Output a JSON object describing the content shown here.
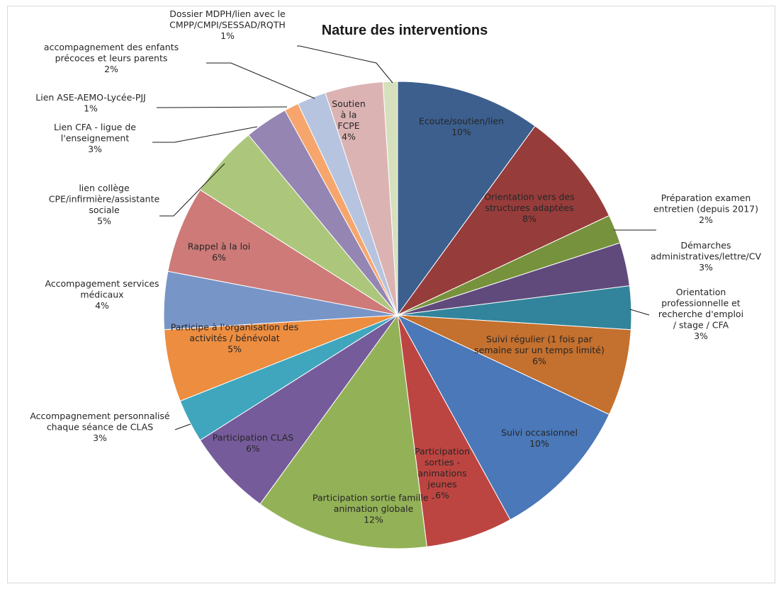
{
  "chart_data": {
    "type": "pie",
    "title": "Nature des interventions",
    "series": [
      {
        "label": [
          "Ecoute/soutien/lien"
        ],
        "pct_label": "10%",
        "value": 10,
        "color": "#3c5f8e"
      },
      {
        "label": [
          "Orientation vers des",
          "structures adaptées"
        ],
        "pct_label": "8%",
        "value": 8,
        "color": "#963c3a"
      },
      {
        "label": [
          "Préparation examen",
          "entretien (depuis 2017)"
        ],
        "pct_label": "2%",
        "value": 2,
        "color": "#76923c"
      },
      {
        "label": [
          "Démarches",
          "administratives/lettre/CV"
        ],
        "pct_label": "3%",
        "value": 3,
        "color": "#604a7b"
      },
      {
        "label": [
          "Orientation",
          "professionnelle et",
          "recherche d'emploi",
          "/ stage / CFA"
        ],
        "pct_label": "3%",
        "value": 3,
        "color": "#31849b"
      },
      {
        "label": [
          "Suivi régulier (1 fois par",
          "semaine sur un temps limité)"
        ],
        "pct_label": "6%",
        "value": 6,
        "color": "#c4702e"
      },
      {
        "label": [
          "Suivi occasionnel"
        ],
        "pct_label": "10%",
        "value": 10,
        "color": "#4a78b8"
      },
      {
        "label": [
          "Participation",
          "sorties -",
          "animations",
          "jeunes"
        ],
        "pct_label": "6%",
        "value": 6,
        "color": "#bd4541"
      },
      {
        "label": [
          "Participation sortie famille -",
          "animation globale"
        ],
        "pct_label": "12%",
        "value": 12,
        "color": "#93b257"
      },
      {
        "label": [
          "Participation CLAS"
        ],
        "pct_label": "6%",
        "value": 6,
        "color": "#765b9b"
      },
      {
        "label": [
          "Accompagnement personnalisé",
          "chaque séance de CLAS"
        ],
        "pct_label": "3%",
        "value": 3,
        "color": "#3fa6bd"
      },
      {
        "label": [
          "Participe à l'organisation des",
          "activités / bénévolat"
        ],
        "pct_label": "5%",
        "value": 5,
        "color": "#ec8d40"
      },
      {
        "label": [
          "Accompagement services",
          "médicaux"
        ],
        "pct_label": "4%",
        "value": 4,
        "color": "#7895c8"
      },
      {
        "label": [
          "Rappel à la loi"
        ],
        "pct_label": "6%",
        "value": 6,
        "color": "#cd7a78"
      },
      {
        "label": [
          "lien collège",
          "CPE/infirmière/assistante",
          "sociale"
        ],
        "pct_label": "5%",
        "value": 5,
        "color": "#acc77c"
      },
      {
        "label": [
          "Lien CFA - ligue de",
          "l'enseignement"
        ],
        "pct_label": "3%",
        "value": 3,
        "color": "#9585b2"
      },
      {
        "label": [
          "Lien ASE-AEMO-Lycée-PJJ"
        ],
        "pct_label": "1%",
        "value": 1,
        "color": "#f6a66c"
      },
      {
        "label": [
          "accompagnement des enfants",
          "précoces et leurs parents"
        ],
        "pct_label": "2%",
        "value": 2,
        "color": "#b6c4e0"
      },
      {
        "label": [
          "Soutien",
          "à la",
          "FCPE"
        ],
        "pct_label": "4%",
        "value": 4,
        "color": "#dcb3b3"
      },
      {
        "label": [
          "Dossier MDPH/lien avec le",
          "CMPP/CMPI/SESSAD/RQTH"
        ],
        "pct_label": "1%",
        "value": 1,
        "color": "#d6e0bd"
      }
    ]
  }
}
